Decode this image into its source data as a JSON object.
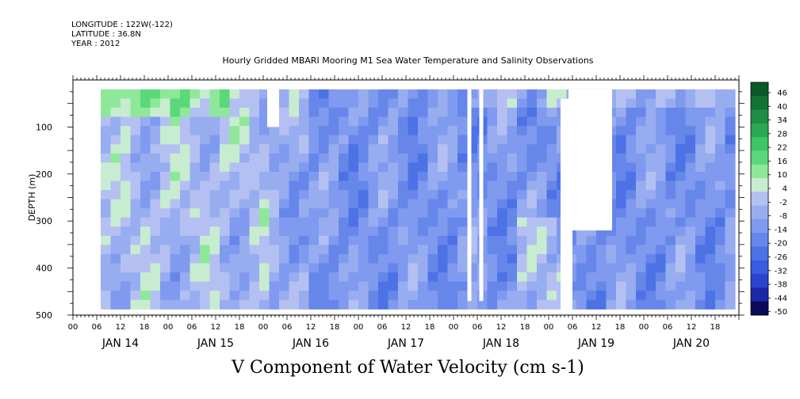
{
  "header": {
    "longitude": "LONGITUDE : 122W(-122)",
    "latitude": "LATITUDE : 36.8N",
    "year": "YEAR : 2012",
    "title": "Hourly Gridded MBARI Mooring M1 Sea Water Temperature and Salinity Observations"
  },
  "chart_data": {
    "type": "heatmap",
    "title": "V Component of Water Velocity (cm s-1)",
    "ylabel": "DEPTH (m)",
    "ylim": [
      500,
      0
    ],
    "y_ticks": [
      100,
      200,
      300,
      400,
      500
    ],
    "y_tick_labels": [
      "100",
      "200",
      "300",
      "400",
      "500"
    ],
    "x_range_hours": [
      0,
      168
    ],
    "x_hour_labels": [
      "00",
      "06",
      "12",
      "18",
      "00",
      "06",
      "12",
      "18",
      "00",
      "06",
      "12",
      "18",
      "00",
      "06",
      "12",
      "18",
      "00",
      "06",
      "12",
      "18",
      "00",
      "06",
      "12",
      "18",
      "00",
      "06",
      "12",
      "18"
    ],
    "x_day_labels": [
      "JAN 14",
      "JAN 15",
      "JAN 16",
      "JAN 17",
      "JAN 18",
      "JAN 19",
      "JAN 20"
    ],
    "colorbar": {
      "levels": [
        -50,
        -44,
        -38,
        -32,
        -26,
        -20,
        -14,
        -8,
        -2,
        4,
        10,
        16,
        22,
        28,
        34,
        40,
        46
      ],
      "labels": [
        "46",
        "40",
        "34",
        "28",
        "22",
        "16",
        "10",
        "4",
        "-2",
        "-8",
        "-14",
        "-20",
        "-26",
        "-32",
        "-38",
        "-44",
        "-50"
      ],
      "colors": [
        "#0a0a5a",
        "#1a28a8",
        "#2a44d0",
        "#3a5ce0",
        "#4c72e6",
        "#6686ea",
        "#7f9aee",
        "#98adf0",
        "#b4c0f2",
        "#c8ecd0",
        "#8ee89a",
        "#5ad87a",
        "#3cc466",
        "#2aa854",
        "#1e8e44",
        "#137236",
        "#0a5a28"
      ]
    },
    "data_depth_range_m": [
      20,
      487
    ],
    "data_time_range_hours": [
      7,
      167
    ]
  }
}
